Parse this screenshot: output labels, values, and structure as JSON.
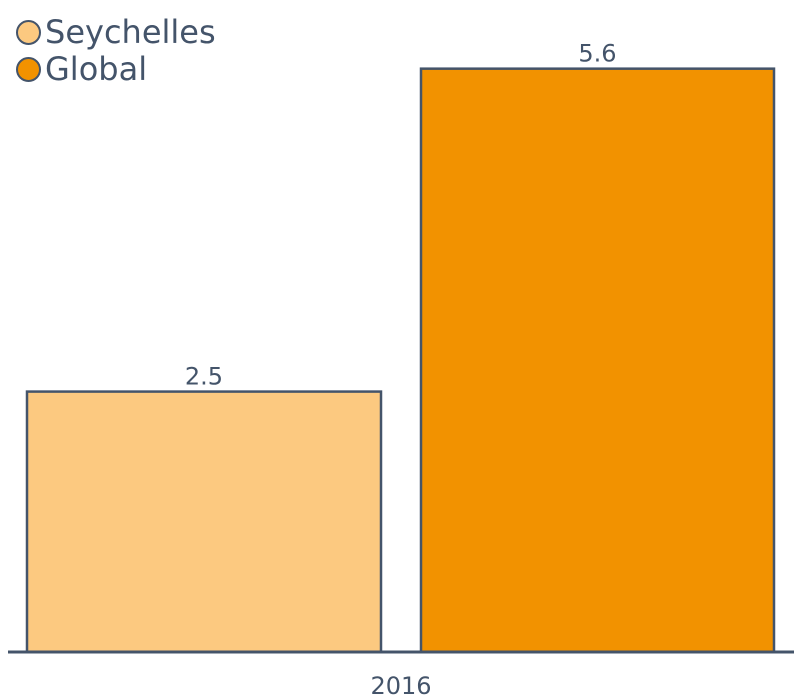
{
  "chart_data": {
    "type": "bar",
    "categories": [
      "2016"
    ],
    "series": [
      {
        "name": "Seychelles",
        "values": [
          2.5
        ],
        "color": "#fcc980"
      },
      {
        "name": "Global",
        "values": [
          5.6
        ],
        "color": "#f29200"
      }
    ],
    "value_labels": [
      "2.5",
      "5.6"
    ],
    "ylim": [
      0,
      6
    ],
    "grid": false,
    "legend_position": "top-left",
    "border_color": "#44546a",
    "text_color": "#44546a"
  }
}
